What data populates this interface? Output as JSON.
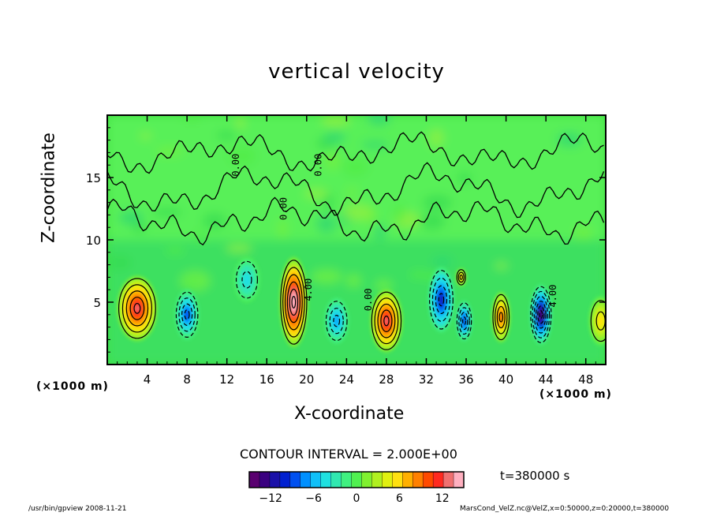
{
  "chart_data": {
    "type": "heatmap",
    "title": "vertical velocity",
    "xlabel": "X-coordinate",
    "ylabel": "Z-coordinate",
    "x_unit": "(×1000 m)",
    "y_unit": "(×1000 m)",
    "xlim": [
      0,
      50
    ],
    "ylim": [
      0,
      20
    ],
    "x_ticks": [
      4,
      8,
      12,
      16,
      20,
      24,
      28,
      32,
      36,
      40,
      44,
      48
    ],
    "y_ticks": [
      5,
      10,
      15
    ],
    "contour_interval_label": "CONTOUR INTERVAL = 2.000E+00",
    "contour_labels": [
      {
        "text": "0.00",
        "x": 13.2,
        "z": 16
      },
      {
        "text": "0.00",
        "x": 21.5,
        "z": 16
      },
      {
        "text": "0.00",
        "x": 18.0,
        "z": 12.5
      },
      {
        "text": "4.00",
        "x": 20.5,
        "z": 6
      },
      {
        "text": "0.00",
        "x": 26.5,
        "z": 5.2
      },
      {
        "text": "4.00",
        "x": 45.0,
        "z": 5.5
      }
    ],
    "cells": [
      {
        "x": 3.0,
        "z": 4.5,
        "w": 0.9,
        "sx": 2.0,
        "sz": 2.6,
        "peak": 13
      },
      {
        "x": 8.0,
        "z": 4.0,
        "w": -0.8,
        "sx": 1.2,
        "sz": 2.0,
        "peak": -9
      },
      {
        "x": 14.0,
        "z": 6.8,
        "w": -0.5,
        "sx": 1.3,
        "sz": 1.8,
        "peak": -5
      },
      {
        "x": 18.7,
        "z": 5.0,
        "w": 1.0,
        "sx": 1.4,
        "sz": 3.6,
        "peak": 16
      },
      {
        "x": 23.0,
        "z": 3.5,
        "w": -0.6,
        "sx": 1.2,
        "sz": 1.8,
        "peak": -7
      },
      {
        "x": 28.0,
        "z": 3.5,
        "w": 0.95,
        "sx": 1.6,
        "sz": 2.5,
        "peak": 13
      },
      {
        "x": 33.5,
        "z": 5.2,
        "w": -0.8,
        "sx": 1.3,
        "sz": 2.6,
        "peak": -11
      },
      {
        "x": 35.8,
        "z": 3.5,
        "w": -0.7,
        "sx": 0.8,
        "sz": 1.6,
        "peak": -10
      },
      {
        "x": 35.5,
        "z": 7.0,
        "w": 0.6,
        "sx": 0.5,
        "sz": 0.7,
        "peak": 8
      },
      {
        "x": 39.5,
        "z": 3.8,
        "w": 0.75,
        "sx": 0.9,
        "sz": 2.0,
        "peak": 10
      },
      {
        "x": 43.5,
        "z": 4.0,
        "w": -1.0,
        "sx": 1.1,
        "sz": 2.4,
        "peak": -14
      },
      {
        "x": 49.5,
        "z": 3.5,
        "w": 0.4,
        "sx": 1.2,
        "sz": 2.0,
        "peak": 6
      }
    ],
    "colorbar": {
      "range": [
        -15,
        15
      ],
      "ticks": [
        -12,
        -6,
        0,
        6,
        12
      ],
      "colors": [
        "#5a0070",
        "#3a0080",
        "#1a10a8",
        "#0020d0",
        "#0050f0",
        "#0090ff",
        "#10c0f8",
        "#20e0e0",
        "#30e8b0",
        "#40f080",
        "#50f050",
        "#80f030",
        "#b0f020",
        "#e0f010",
        "#ffe010",
        "#ffb000",
        "#ff8000",
        "#ff4a00",
        "#ff2a20",
        "#f07070",
        "#ffb0c0"
      ]
    },
    "time_label": "t=380000  s"
  },
  "footer": {
    "left": "/usr/bin/gpview  2008-11-21",
    "right": "MarsCond_VelZ.nc@VelZ,x=0:50000,z=0:20000,t=380000"
  }
}
